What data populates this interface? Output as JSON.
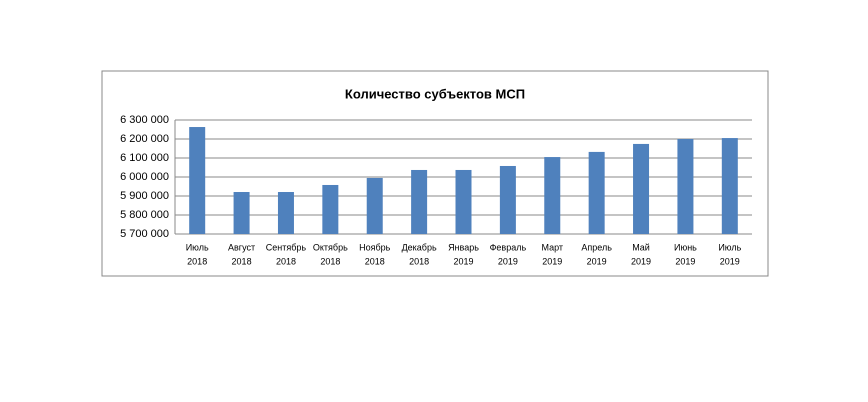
{
  "chart_data": {
    "type": "bar",
    "title": "Количество субъектов МСП",
    "categories": [
      [
        "Июль",
        "2018"
      ],
      [
        "Август",
        "2018"
      ],
      [
        "Сентябрь",
        "2018"
      ],
      [
        "Октябрь",
        "2018"
      ],
      [
        "Ноябрь",
        "2018"
      ],
      [
        "Декабрь",
        "2018"
      ],
      [
        "Январь",
        "2019"
      ],
      [
        "Февраль",
        "2019"
      ],
      [
        "Март",
        "2019"
      ],
      [
        "Апрель",
        "2019"
      ],
      [
        "Май",
        "2019"
      ],
      [
        "Июнь",
        "2019"
      ],
      [
        "Июль",
        "2019"
      ]
    ],
    "values": [
      6263000,
      5921000,
      5921000,
      5958000,
      5995000,
      6037000,
      6037000,
      6058000,
      6105000,
      6132000,
      6174000,
      6200000,
      6205000
    ],
    "color": "#4f81bd",
    "ylim": [
      5700000,
      6300000
    ],
    "yticks": [
      {
        "value": 5700000,
        "label": "5 700 000"
      },
      {
        "value": 5800000,
        "label": "5 800 000"
      },
      {
        "value": 5900000,
        "label": "5 900 000"
      },
      {
        "value": 6000000,
        "label": "6 000 000"
      },
      {
        "value": 6100000,
        "label": "6 100 000"
      },
      {
        "value": 6200000,
        "label": "6 200 000"
      },
      {
        "value": 6300000,
        "label": "6 300 000"
      }
    ],
    "grid": true
  }
}
